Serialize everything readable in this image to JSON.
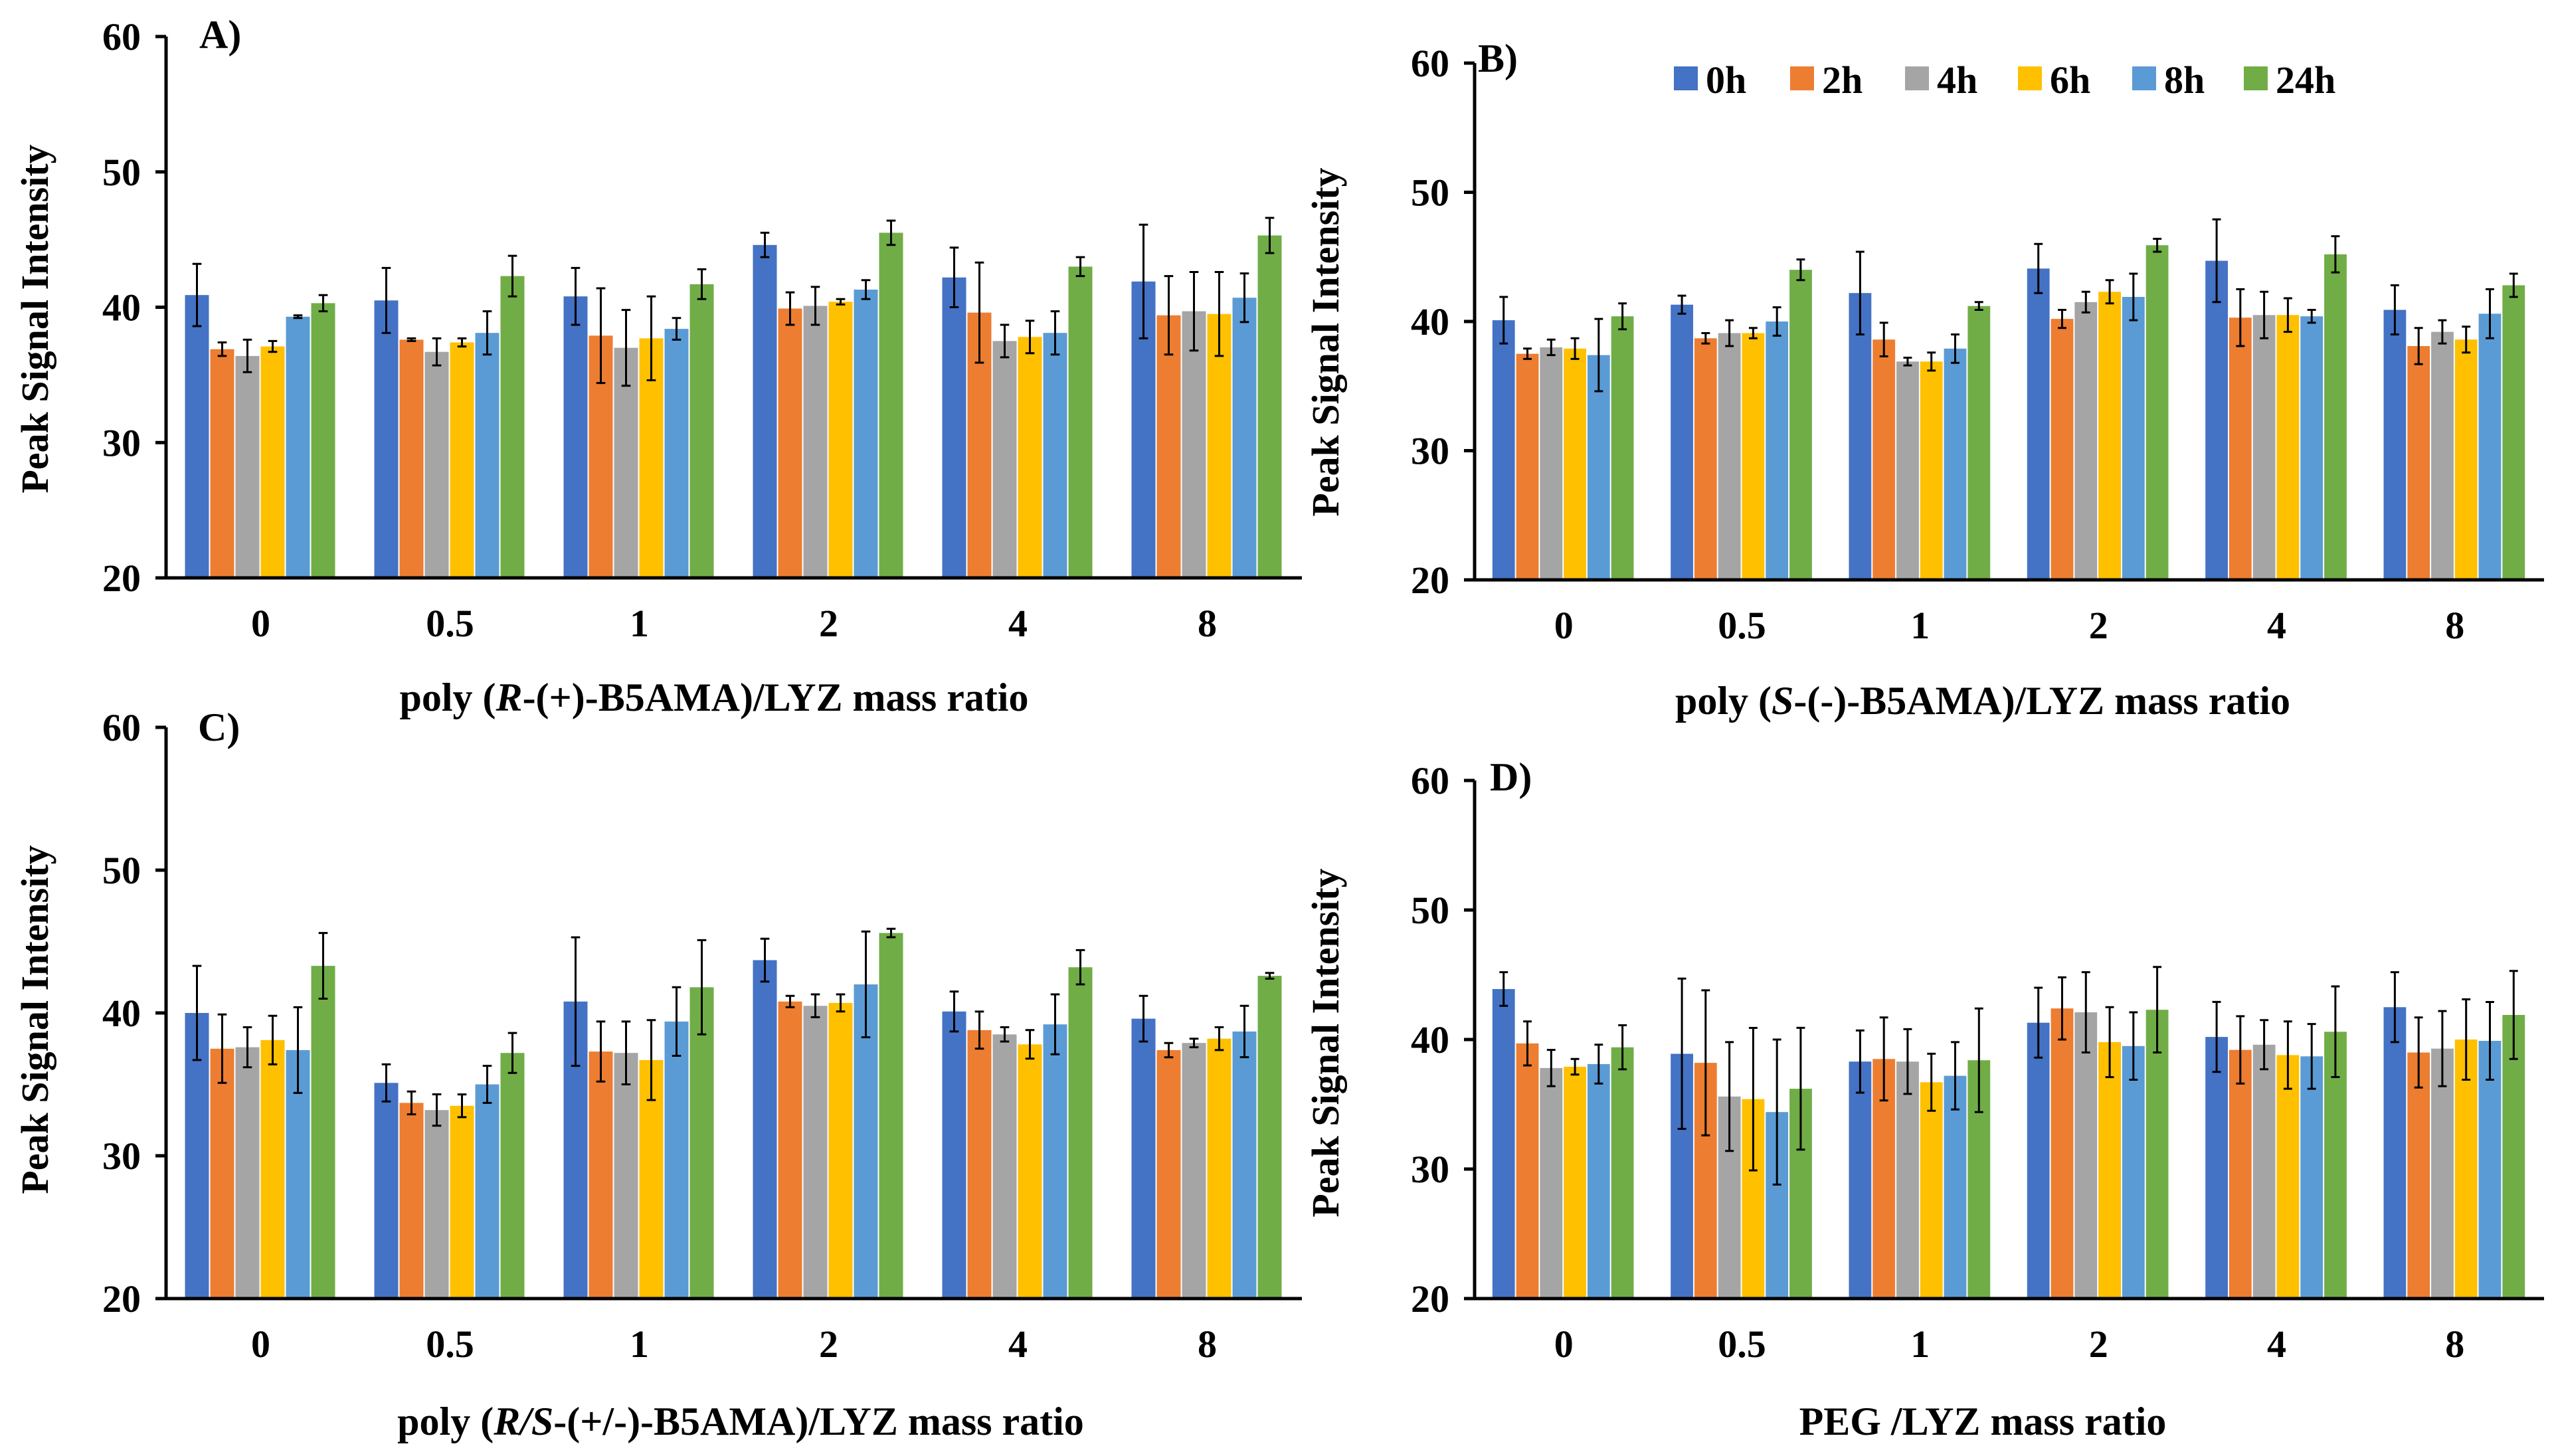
{
  "figure": {
    "y_axis_label": "Peak Signal Intensity",
    "series_names": [
      "0h",
      "2h",
      "4h",
      "6h",
      "8h",
      "24h"
    ],
    "series_colors": [
      "#4472C4",
      "#ED7D31",
      "#A5A5A5",
      "#FFC000",
      "#5B9BD5",
      "#70AD47"
    ]
  },
  "legend": {
    "items": [
      {
        "label": "0h",
        "color": "#4472C4"
      },
      {
        "label": "2h",
        "color": "#ED7D31"
      },
      {
        "label": "4h",
        "color": "#A5A5A5"
      },
      {
        "label": "6h",
        "color": "#FFC000"
      },
      {
        "label": "8h",
        "color": "#5B9BD5"
      },
      {
        "label": "24h",
        "color": "#70AD47"
      }
    ]
  },
  "chart_data": [
    {
      "type": "bar",
      "panel_label": "A)",
      "xlabel_prefix": "poly (",
      "xlabel_italic": "R",
      "xlabel_suffix": "-(+)-B5AMA)/LYZ mass ratio",
      "ylabel": "Peak Signal Intensity",
      "ylim": [
        20,
        60
      ],
      "yticks": [
        "20",
        "30",
        "40",
        "50",
        "60"
      ],
      "categories": [
        "0",
        "0.5",
        "1",
        "2",
        "4",
        "8"
      ],
      "series": [
        {
          "name": "0h",
          "values": [
            40.9,
            40.5,
            40.8,
            44.6,
            42.2,
            41.9
          ],
          "errors": [
            2.3,
            2.4,
            2.1,
            0.9,
            2.2,
            4.2
          ]
        },
        {
          "name": "2h",
          "values": [
            36.9,
            37.6,
            37.9,
            39.9,
            39.6,
            39.4
          ],
          "errors": [
            0.5,
            0.1,
            3.5,
            1.2,
            3.7,
            2.9
          ]
        },
        {
          "name": "4h",
          "values": [
            36.4,
            36.7,
            37.0,
            40.1,
            37.5,
            39.7
          ],
          "errors": [
            1.2,
            1.0,
            2.8,
            1.4,
            1.2,
            2.9
          ]
        },
        {
          "name": "6h",
          "values": [
            37.1,
            37.4,
            37.7,
            40.4,
            37.8,
            39.5
          ],
          "errors": [
            0.4,
            0.3,
            3.1,
            0.2,
            1.2,
            3.1
          ]
        },
        {
          "name": "8h",
          "values": [
            39.3,
            38.1,
            38.4,
            41.3,
            38.1,
            40.7
          ],
          "errors": [
            0.1,
            1.6,
            0.8,
            0.7,
            1.6,
            1.8
          ]
        },
        {
          "name": "24h",
          "values": [
            40.3,
            42.3,
            41.7,
            45.5,
            43.0,
            45.3
          ],
          "errors": [
            0.6,
            1.5,
            1.1,
            0.9,
            0.7,
            1.3
          ]
        }
      ]
    },
    {
      "type": "bar",
      "panel_label": "B)",
      "xlabel_prefix": "poly (",
      "xlabel_italic": "S",
      "xlabel_suffix": "-(-)-B5AMA)/LYZ mass ratio",
      "ylabel": "Peak Signal Intensity",
      "ylim": [
        20,
        60
      ],
      "yticks": [
        "20",
        "30",
        "40",
        "50",
        "60"
      ],
      "categories": [
        "0",
        "0.5",
        "1",
        "2",
        "4",
        "8"
      ],
      "series": [
        {
          "name": "0h",
          "values": [
            40.1,
            41.3,
            42.2,
            44.1,
            44.7,
            40.9
          ],
          "errors": [
            1.8,
            0.7,
            3.2,
            1.9,
            3.2,
            1.9
          ]
        },
        {
          "name": "2h",
          "values": [
            37.5,
            38.7,
            38.6,
            40.2,
            40.3,
            38.1
          ],
          "errors": [
            0.4,
            0.4,
            1.3,
            0.7,
            2.2,
            1.4
          ]
        },
        {
          "name": "4h",
          "values": [
            38.0,
            39.1,
            36.9,
            41.5,
            40.5,
            39.2
          ],
          "errors": [
            0.6,
            1.0,
            0.3,
            0.8,
            1.8,
            0.9
          ]
        },
        {
          "name": "6h",
          "values": [
            37.9,
            39.1,
            36.9,
            42.3,
            40.5,
            38.6
          ],
          "errors": [
            0.8,
            0.4,
            0.7,
            0.9,
            1.3,
            1.0
          ]
        },
        {
          "name": "8h",
          "values": [
            37.4,
            40.0,
            37.9,
            41.9,
            40.4,
            40.6
          ],
          "errors": [
            2.8,
            1.1,
            1.1,
            1.8,
            0.5,
            1.9
          ]
        },
        {
          "name": "24h",
          "values": [
            40.4,
            44.0,
            41.2,
            45.9,
            45.2,
            42.8
          ],
          "errors": [
            1.0,
            0.8,
            0.3,
            0.5,
            1.4,
            0.9
          ]
        }
      ]
    },
    {
      "type": "bar",
      "panel_label": "C)",
      "xlabel_prefix": "poly (",
      "xlabel_italic": "R/S",
      "xlabel_suffix": "-(+/-)-B5AMA)/LYZ mass ratio",
      "ylabel": "Peak Signal Intensity",
      "ylim": [
        20,
        60
      ],
      "yticks": [
        "20",
        "30",
        "40",
        "50",
        "60"
      ],
      "categories": [
        "0",
        "0.5",
        "1",
        "2",
        "4",
        "8"
      ],
      "series": [
        {
          "name": "0h",
          "values": [
            40.0,
            35.1,
            40.8,
            43.7,
            40.1,
            39.6
          ],
          "errors": [
            3.3,
            1.3,
            4.5,
            1.5,
            1.4,
            1.6
          ]
        },
        {
          "name": "2h",
          "values": [
            37.5,
            33.7,
            37.3,
            40.8,
            38.8,
            37.4
          ],
          "errors": [
            2.4,
            0.8,
            2.1,
            0.4,
            1.3,
            0.5
          ]
        },
        {
          "name": "4h",
          "values": [
            37.6,
            33.2,
            37.2,
            40.5,
            38.5,
            37.9
          ],
          "errors": [
            1.4,
            1.1,
            2.2,
            0.8,
            0.5,
            0.3
          ]
        },
        {
          "name": "6h",
          "values": [
            38.1,
            33.5,
            36.7,
            40.7,
            37.8,
            38.2
          ],
          "errors": [
            1.7,
            0.8,
            2.8,
            0.6,
            1.0,
            0.8
          ]
        },
        {
          "name": "8h",
          "values": [
            37.4,
            35.0,
            39.4,
            42.0,
            39.2,
            38.7
          ],
          "errors": [
            3.0,
            1.3,
            2.4,
            3.7,
            2.1,
            1.8
          ]
        },
        {
          "name": "24h",
          "values": [
            43.3,
            37.2,
            41.8,
            45.6,
            43.2,
            42.6
          ],
          "errors": [
            2.3,
            1.4,
            3.3,
            0.3,
            1.2,
            0.2
          ]
        }
      ]
    },
    {
      "type": "bar",
      "panel_label": "D)",
      "xlabel_prefix": "PEG /LYZ mass ratio",
      "xlabel_italic": "",
      "xlabel_suffix": "",
      "ylabel": "Peak Signal Intensity",
      "ylim": [
        20,
        60
      ],
      "yticks": [
        "20",
        "30",
        "40",
        "50",
        "60"
      ],
      "categories": [
        "0",
        "0.5",
        "1",
        "2",
        "4",
        "8"
      ],
      "series": [
        {
          "name": "0h",
          "values": [
            43.9,
            38.9,
            38.3,
            41.3,
            40.2,
            42.5
          ],
          "errors": [
            1.3,
            5.8,
            2.4,
            2.7,
            2.7,
            2.7
          ]
        },
        {
          "name": "2h",
          "values": [
            39.7,
            38.2,
            38.5,
            42.4,
            39.2,
            39.0
          ],
          "errors": [
            1.7,
            5.6,
            3.2,
            2.4,
            2.6,
            2.7
          ]
        },
        {
          "name": "4h",
          "values": [
            37.8,
            35.6,
            38.3,
            42.1,
            39.6,
            39.3
          ],
          "errors": [
            1.4,
            4.2,
            2.5,
            3.1,
            1.9,
            2.9
          ]
        },
        {
          "name": "6h",
          "values": [
            37.9,
            35.4,
            36.7,
            39.8,
            38.8,
            40.0
          ],
          "errors": [
            0.6,
            5.5,
            2.2,
            2.7,
            2.6,
            3.1
          ]
        },
        {
          "name": "8h",
          "values": [
            38.1,
            34.4,
            37.2,
            39.5,
            38.7,
            39.9
          ],
          "errors": [
            1.5,
            5.6,
            2.6,
            2.6,
            2.5,
            3.0
          ]
        },
        {
          "name": "24h",
          "values": [
            39.4,
            36.2,
            38.4,
            42.3,
            40.6,
            41.9
          ],
          "errors": [
            1.7,
            4.7,
            4.0,
            3.3,
            3.5,
            3.4
          ]
        }
      ]
    }
  ]
}
